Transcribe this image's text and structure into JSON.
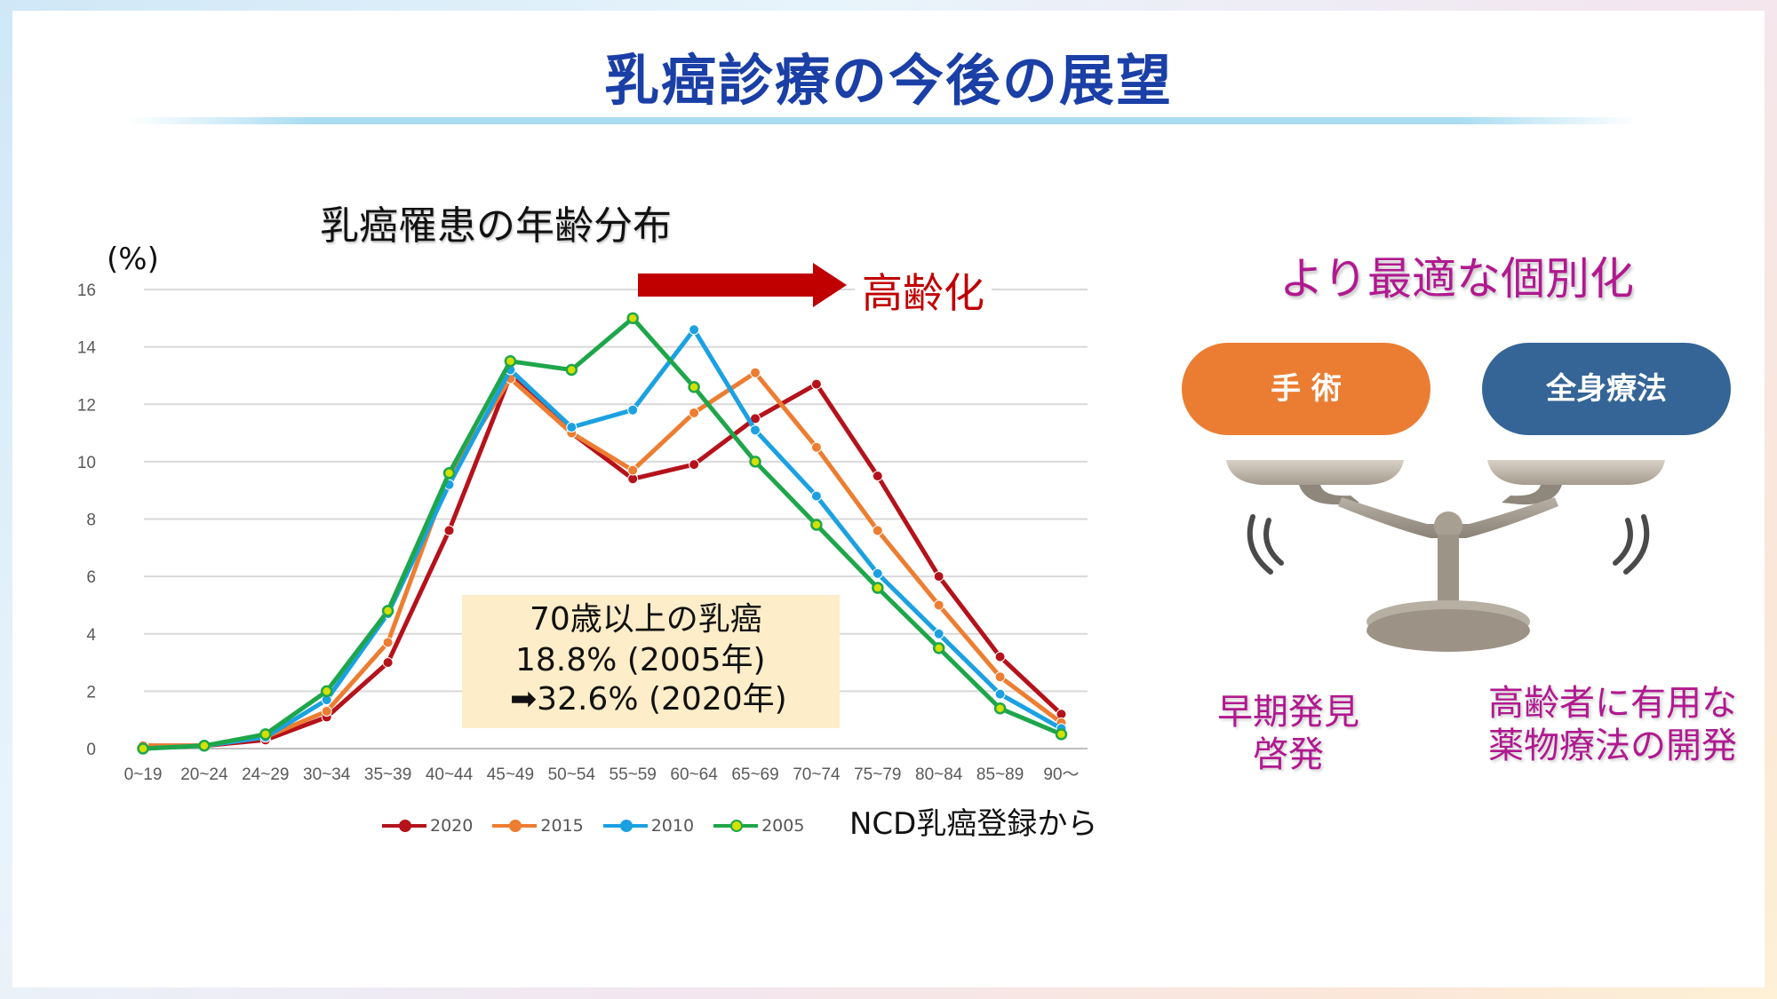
{
  "slide": {
    "title": "乳癌診療の今後の展望"
  },
  "left_panel": {
    "chart_title": "乳癌罹患の年齢分布",
    "y_unit": "(%)",
    "trend_label": "高齢化",
    "callout": {
      "line1": "70歳以上の乳癌",
      "line2": "18.8% (2005年)",
      "line3": "➡32.6% (2020年)"
    },
    "source": "NCD乳癌登録から"
  },
  "right_panel": {
    "heading": "より最適な個別化",
    "left_pill": "手 術",
    "right_pill": "全身療法",
    "left_caption": "早期発見\n啓発",
    "right_caption": "高齢者に有用な\n薬物療法の開発",
    "icon": "balance-scale-icon"
  },
  "chart_data": {
    "type": "line",
    "title": "乳癌罹患の年齢分布",
    "ylabel": "(%)",
    "xlabel": "",
    "ylim": [
      0,
      16
    ],
    "yticks": [
      0,
      2,
      4,
      6,
      8,
      10,
      12,
      14,
      16
    ],
    "grid": true,
    "legend": "bottom",
    "categories": [
      "0~19",
      "20~24",
      "24~29",
      "30~34",
      "35~39",
      "40~44",
      "45~49",
      "50~54",
      "55~59",
      "60~64",
      "65~69",
      "70~74",
      "75~79",
      "80~84",
      "85~89",
      "90～"
    ],
    "series": [
      {
        "name": "2020",
        "color": "#b5121b",
        "values": [
          0.1,
          0.1,
          0.3,
          1.1,
          3.0,
          7.6,
          13.0,
          11.0,
          9.4,
          9.9,
          11.5,
          12.7,
          9.5,
          6.0,
          3.2,
          1.2
        ]
      },
      {
        "name": "2015",
        "color": "#ed7d31",
        "values": [
          0.1,
          0.1,
          0.4,
          1.3,
          3.7,
          9.5,
          12.9,
          11.0,
          9.7,
          11.7,
          13.1,
          10.5,
          7.6,
          5.0,
          2.5,
          0.9
        ]
      },
      {
        "name": "2010",
        "color": "#1ba1e2",
        "values": [
          0.0,
          0.1,
          0.4,
          1.7,
          4.7,
          9.2,
          13.2,
          11.2,
          11.8,
          14.6,
          11.1,
          8.8,
          6.1,
          4.0,
          1.9,
          0.7
        ]
      },
      {
        "name": "2005",
        "color": "#1ea64a",
        "values": [
          0.0,
          0.1,
          0.5,
          2.0,
          4.8,
          9.6,
          13.5,
          13.2,
          15.0,
          12.6,
          10.0,
          7.8,
          5.6,
          3.5,
          1.4,
          0.5
        ]
      }
    ]
  }
}
